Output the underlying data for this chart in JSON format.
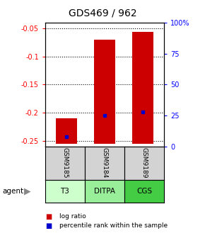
{
  "title": "GDS469 / 962",
  "ylim_left": [
    -0.26,
    -0.04
  ],
  "ylim_right": [
    0,
    100
  ],
  "yticks_left": [
    -0.05,
    -0.1,
    -0.15,
    -0.2,
    -0.25
  ],
  "ytick_labels_left": [
    "-0.05",
    "-0.1",
    "-0.15",
    "-0.2",
    "-0.25"
  ],
  "yticks_right": [
    0,
    25,
    50,
    75,
    100
  ],
  "ytick_labels_right": [
    "0",
    "25",
    "50",
    "75",
    "100%"
  ],
  "samples": [
    "GSM9185",
    "GSM9184",
    "GSM9189"
  ],
  "agents": [
    "T3",
    "DITPA",
    "CGS"
  ],
  "agent_colors": [
    "#ccffcc",
    "#99ee99",
    "#44cc44"
  ],
  "sample_bg": "#d3d3d3",
  "bar_tops": [
    -0.21,
    -0.07,
    -0.057
  ],
  "bar_bottom": -0.255,
  "bar_color": "#cc0000",
  "bar_width": 0.55,
  "percentile_values": [
    8,
    25,
    28
  ],
  "percentile_color": "#0000cc",
  "legend_log_color": "#cc0000",
  "legend_pct_color": "#0000cc",
  "background_color": "#ffffff"
}
